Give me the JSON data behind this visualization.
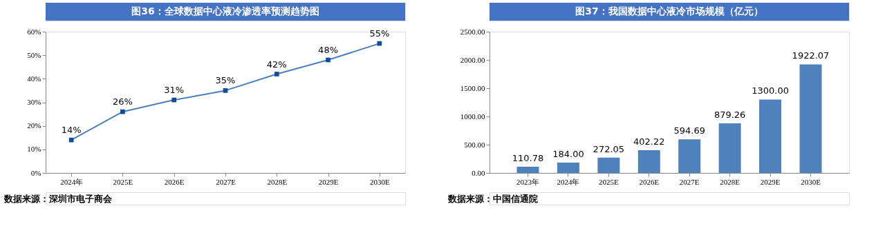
{
  "chart_data": [
    {
      "type": "line",
      "title": "图36：全球数据中心液冷渗透率预测趋势图",
      "categories": [
        "2024年",
        "2025E",
        "2026E",
        "2027E",
        "2028E",
        "2029E",
        "2030E"
      ],
      "series": [
        {
          "color": "#4a7ebb",
          "values": [
            14,
            26,
            31,
            35,
            42,
            48,
            55
          ],
          "value_labels": [
            "14%",
            "26%",
            "31%",
            "35%",
            "42%",
            "48%",
            "55%"
          ]
        }
      ],
      "marker": "square",
      "grid": false,
      "ylim": [
        0,
        60
      ],
      "yticks": [
        {
          "value": 0,
          "label": "0%"
        },
        {
          "value": 10,
          "label": "10%"
        },
        {
          "value": 20,
          "label": "20%"
        },
        {
          "value": 30,
          "label": "30%"
        },
        {
          "value": 40,
          "label": "40%"
        },
        {
          "value": 50,
          "label": "50%"
        },
        {
          "value": 60,
          "label": "60%"
        }
      ],
      "annotations": [
        "数据来源：深圳市电子商会"
      ]
    },
    {
      "type": "bar",
      "title": "图37：我国数据中心液冷市场规模（亿元）",
      "categories": [
        "2023年",
        "2024年",
        "2025E",
        "2026E",
        "2027E",
        "2028E",
        "2029E",
        "2030E"
      ],
      "series": [
        {
          "color": "#4f81bd",
          "values": [
            110.78,
            184.0,
            272.05,
            402.22,
            594.69,
            879.26,
            1300.0,
            1922.07
          ],
          "value_labels": [
            "110.78",
            "184.00",
            "272.05",
            "402.22",
            "594.69",
            "879.26",
            "1300.00",
            "1922.07"
          ]
        }
      ],
      "grid": false,
      "ylim": [
        0,
        2500
      ],
      "yticks": [
        {
          "value": 0,
          "label": "0.00"
        },
        {
          "value": 500,
          "label": "500.00"
        },
        {
          "value": 1000,
          "label": "1000.00"
        },
        {
          "value": 1500,
          "label": "1500.00"
        },
        {
          "value": 2000,
          "label": "2000.00"
        },
        {
          "value": 2500,
          "label": "2500.00"
        }
      ],
      "annotations": [
        "数据来源：中国信通院"
      ]
    }
  ]
}
